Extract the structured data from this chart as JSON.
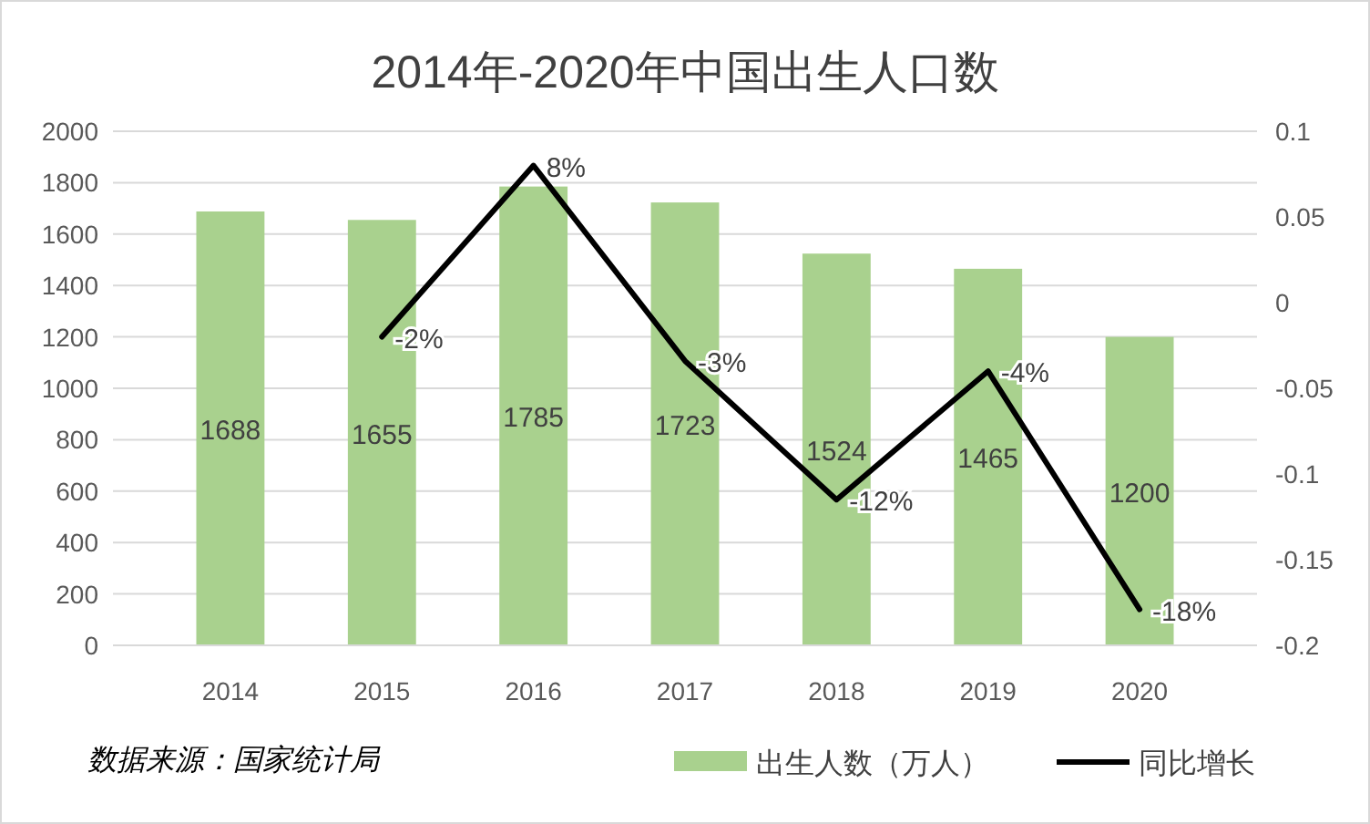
{
  "chart_data": {
    "type": "bar",
    "title": "2014年-2020年中国出生人口数",
    "categories": [
      "2014",
      "2015",
      "2016",
      "2017",
      "2018",
      "2019",
      "2020"
    ],
    "series": [
      {
        "name": "出生人数（万人）",
        "color": "#a9d18e",
        "values": [
          1688,
          1655,
          1785,
          1723,
          1524,
          1465,
          1200
        ],
        "value_labels": [
          "1688",
          "1655",
          "1785",
          "1723",
          "1524",
          "1465",
          "1200"
        ]
      },
      {
        "name": "同比增长",
        "type": "line",
        "axis": "y2",
        "color": "#000000",
        "values": [
          null,
          -0.02,
          0.08,
          -0.034,
          -0.115,
          -0.04,
          -0.179
        ],
        "value_labels": [
          null,
          "-2%",
          "8%",
          "-3%",
          "-12%",
          "-4%",
          "-18%"
        ]
      }
    ],
    "ylim": [
      0,
      2000
    ],
    "yticks": [
      0,
      200,
      400,
      600,
      800,
      1000,
      1200,
      1400,
      1600,
      1800,
      2000
    ],
    "y2lim": [
      -0.2,
      0.1
    ],
    "y2ticks": [
      -0.2,
      -0.15,
      -0.1,
      -0.05,
      0,
      0.05,
      0.1
    ],
    "grid": "y",
    "legend": "bottom",
    "marker": "none",
    "line_style": "solid",
    "annotations": [
      "数据来源：国家统计局"
    ]
  }
}
